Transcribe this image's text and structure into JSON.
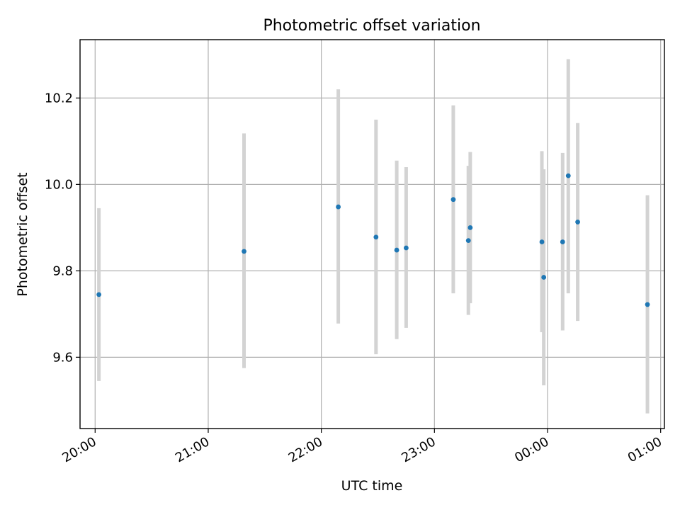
{
  "chart_data": {
    "type": "scatter",
    "title": "Photometric offset variation",
    "xlabel": "UTC time",
    "ylabel": "Photometric offset",
    "x_unit": "UTC time (HH:MM, axis spans 19:52 to 01:02 next day)",
    "xlim": [
      "19:52",
      "01:02"
    ],
    "ylim": [
      9.435,
      10.335
    ],
    "x_ticks": [
      "20:00",
      "21:00",
      "22:00",
      "23:00",
      "00:00",
      "01:00"
    ],
    "y_ticks": [
      9.6,
      9.8,
      10.0,
      10.2
    ],
    "y_tick_labels": [
      "9.6",
      "9.8",
      "10.0",
      "10.2"
    ],
    "grid": true,
    "error_bar_color": "#d3d3d3",
    "point_color": "#1f77b4",
    "points": [
      {
        "x": "20:02",
        "y": 9.745,
        "err_low": 9.545,
        "err_high": 9.945
      },
      {
        "x": "21:19",
        "y": 9.845,
        "err_low": 9.575,
        "err_high": 10.118
      },
      {
        "x": "22:09",
        "y": 9.948,
        "err_low": 9.678,
        "err_high": 10.22
      },
      {
        "x": "22:29",
        "y": 9.878,
        "err_low": 9.607,
        "err_high": 10.15
      },
      {
        "x": "22:40",
        "y": 9.848,
        "err_low": 9.642,
        "err_high": 10.055
      },
      {
        "x": "22:45",
        "y": 9.853,
        "err_low": 9.668,
        "err_high": 10.04
      },
      {
        "x": "23:10",
        "y": 9.965,
        "err_low": 9.748,
        "err_high": 10.183
      },
      {
        "x": "23:18",
        "y": 9.87,
        "err_low": 9.698,
        "err_high": 10.043
      },
      {
        "x": "23:19",
        "y": 9.9,
        "err_low": 9.725,
        "err_high": 10.075
      },
      {
        "x": "23:57",
        "y": 9.867,
        "err_low": 9.658,
        "err_high": 10.077
      },
      {
        "x": "23:58",
        "y": 9.785,
        "err_low": 9.535,
        "err_high": 10.035
      },
      {
        "x": "00:08",
        "y": 9.867,
        "err_low": 9.662,
        "err_high": 10.073
      },
      {
        "x": "00:11",
        "y": 10.02,
        "err_low": 9.748,
        "err_high": 10.29
      },
      {
        "x": "00:16",
        "y": 9.913,
        "err_low": 9.684,
        "err_high": 10.142
      },
      {
        "x": "00:53",
        "y": 9.722,
        "err_low": 9.47,
        "err_high": 9.975
      }
    ]
  }
}
